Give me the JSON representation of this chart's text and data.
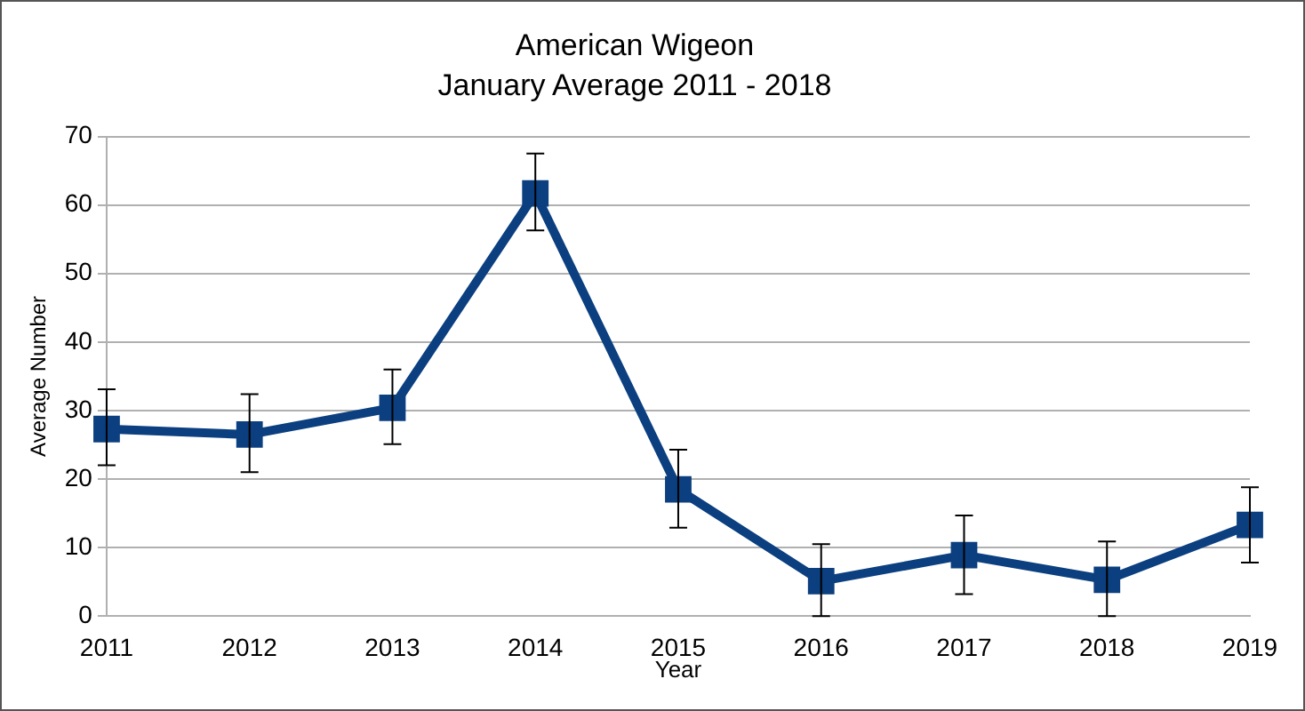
{
  "chart_data": {
    "type": "line",
    "title": "American Wigeon",
    "subtitle": "January Average 2011 - 2018",
    "xlabel": "Year",
    "ylabel": "Average Number",
    "categories": [
      "2011",
      "2012",
      "2013",
      "2014",
      "2015",
      "2016",
      "2017",
      "2018",
      "2019"
    ],
    "series": [
      {
        "color": "#0b3f7f",
        "values": [
          27.3,
          26.5,
          30.4,
          61.7,
          18.5,
          5.1,
          8.9,
          5.3,
          13.3
        ],
        "errors": [
          [
            22.0,
            33.1
          ],
          [
            21.0,
            32.4
          ],
          [
            25.1,
            36.0
          ],
          [
            56.3,
            67.5
          ],
          [
            12.9,
            24.3
          ],
          [
            0,
            10.5
          ],
          [
            3.2,
            14.7
          ],
          [
            0,
            10.9
          ],
          [
            7.8,
            18.8
          ]
        ]
      }
    ],
    "ylim": [
      0,
      70
    ],
    "yticks": [
      0,
      10,
      20,
      30,
      40,
      50,
      60,
      70
    ],
    "grid": "y",
    "legend": false,
    "marker": "square",
    "line_style": "solid"
  }
}
